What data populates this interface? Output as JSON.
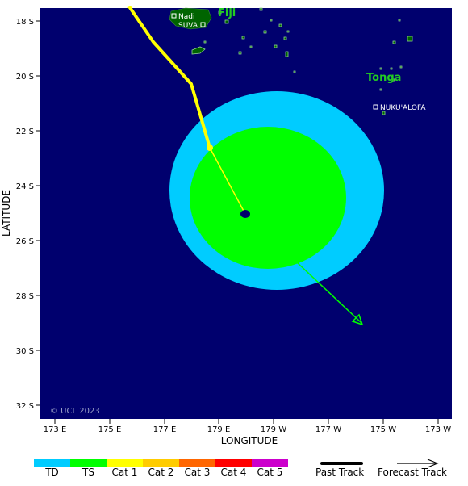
{
  "map": {
    "xlabel": "LONGITUDE",
    "ylabel": "LATITUDE",
    "copyright": "© UCL 2023",
    "x_ticks": [
      "173 E",
      "175 E",
      "177 E",
      "179 E",
      "179 W",
      "177 W",
      "175 W",
      "173 W"
    ],
    "y_ticks": [
      "18 S",
      "20 S",
      "22 S",
      "24 S",
      "26 S",
      "28 S",
      "30 S",
      "32 S"
    ],
    "colors": {
      "ocean": "#00006e",
      "land": "#006400",
      "gale_zone": "#00ccff",
      "storm_zone": "#00ff00",
      "past_track": "#ffff00",
      "forecast_track": "#00ff00"
    },
    "places": [
      {
        "name": "Nadi",
        "marker": "square"
      },
      {
        "name": "SUVA",
        "marker": "square"
      },
      {
        "name": "NUKU'ALOFA",
        "marker": "square"
      }
    ],
    "regions": [
      {
        "name": "Fiji"
      },
      {
        "name": "Tonga"
      }
    ]
  },
  "legend": {
    "categories": [
      {
        "label": "TD",
        "color": "#00ccff"
      },
      {
        "label": "TS",
        "color": "#00ff00"
      },
      {
        "label": "Cat 1",
        "color": "#ffff00"
      },
      {
        "label": "Cat 2",
        "color": "#ffcc00"
      },
      {
        "label": "Cat 3",
        "color": "#ff6600"
      },
      {
        "label": "Cat 4",
        "color": "#ff0000"
      },
      {
        "label": "Cat 5",
        "color": "#cc00cc"
      }
    ],
    "past_track_label": "Past Track",
    "forecast_track_label": "Forecast Track"
  }
}
